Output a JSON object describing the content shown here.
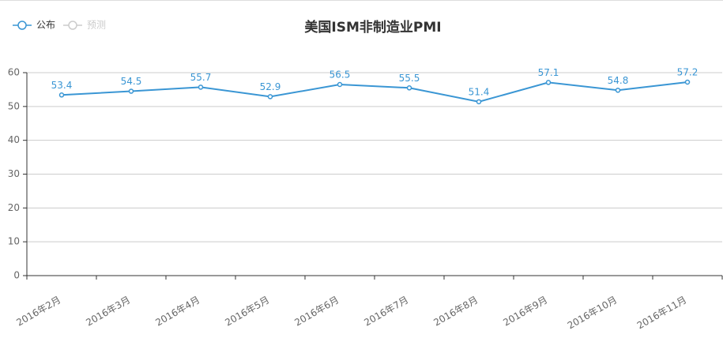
{
  "chart_data": {
    "type": "line",
    "title": "美国ISM非制造业PMI",
    "categories": [
      "2016年2月",
      "2016年3月",
      "2016年4月",
      "2016年5月",
      "2016年6月",
      "2016年7月",
      "2016年8月",
      "2016年9月",
      "2016年10月",
      "2016年11月"
    ],
    "series": [
      {
        "name": "公布",
        "color": "#3a96d4",
        "values": [
          53.4,
          54.5,
          55.7,
          52.9,
          56.5,
          55.5,
          51.4,
          57.1,
          54.8,
          57.2
        ]
      },
      {
        "name": "预测",
        "color": "#cccccc",
        "values": [
          null,
          null,
          null,
          null,
          null,
          null,
          null,
          null,
          null,
          null
        ]
      }
    ],
    "ylim": [
      0,
      60
    ],
    "yticks": [
      0,
      10,
      20,
      30,
      40,
      50,
      60
    ],
    "grid": true,
    "legend": "top-left"
  }
}
